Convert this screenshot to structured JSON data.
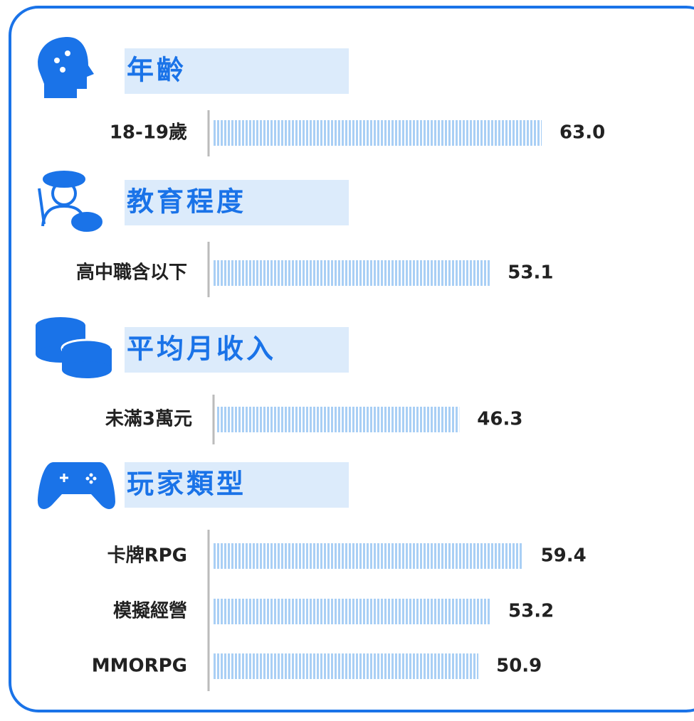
{
  "chart_data": [
    {
      "type": "bar",
      "title": "年齡",
      "categories": [
        "18-19歲"
      ],
      "values": [
        63.0
      ],
      "value_labels": [
        "63.0"
      ],
      "color": "#a9cff5"
    },
    {
      "type": "bar",
      "title": "教育程度",
      "categories": [
        "高中職含以下"
      ],
      "values": [
        53.1
      ],
      "color": "#a9cff5"
    },
    {
      "type": "bar",
      "title": "平均月收入",
      "categories": [
        "未滿3萬元"
      ],
      "values": [
        46.3
      ],
      "color": "#a9cff5"
    },
    {
      "type": "bar",
      "title": "玩家類型",
      "categories": [
        "卡牌RPG",
        "模擬經營",
        "MMORPG"
      ],
      "values": [
        59.4,
        53.2,
        50.9
      ],
      "color": "#a9cff5"
    }
  ]
}
